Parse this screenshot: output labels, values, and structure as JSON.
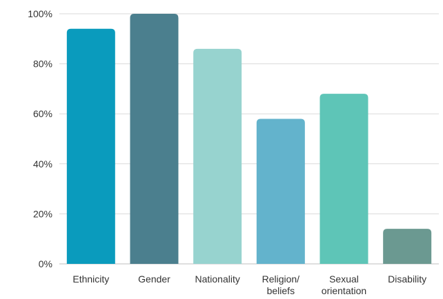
{
  "chart_data": {
    "type": "bar",
    "categories": [
      [
        "Ethnicity"
      ],
      [
        "Gender"
      ],
      [
        "Nationality"
      ],
      [
        "Religion/",
        "beliefs"
      ],
      [
        "Sexual",
        "orientation"
      ],
      [
        "Disability"
      ]
    ],
    "values": [
      94,
      100,
      86,
      58,
      68,
      14
    ],
    "bar_colors": [
      "#0a9bbd",
      "#4b7f8e",
      "#97d3cf",
      "#63b3cc",
      "#5ec5b7",
      "#6b9991"
    ],
    "ylim": [
      0,
      100
    ],
    "yticks": [
      0,
      20,
      40,
      60,
      80,
      100
    ],
    "ytick_labels": [
      "0%",
      "20%",
      "40%",
      "60%",
      "80%",
      "100%"
    ],
    "grid": true,
    "title": "",
    "xlabel": "",
    "ylabel": ""
  }
}
